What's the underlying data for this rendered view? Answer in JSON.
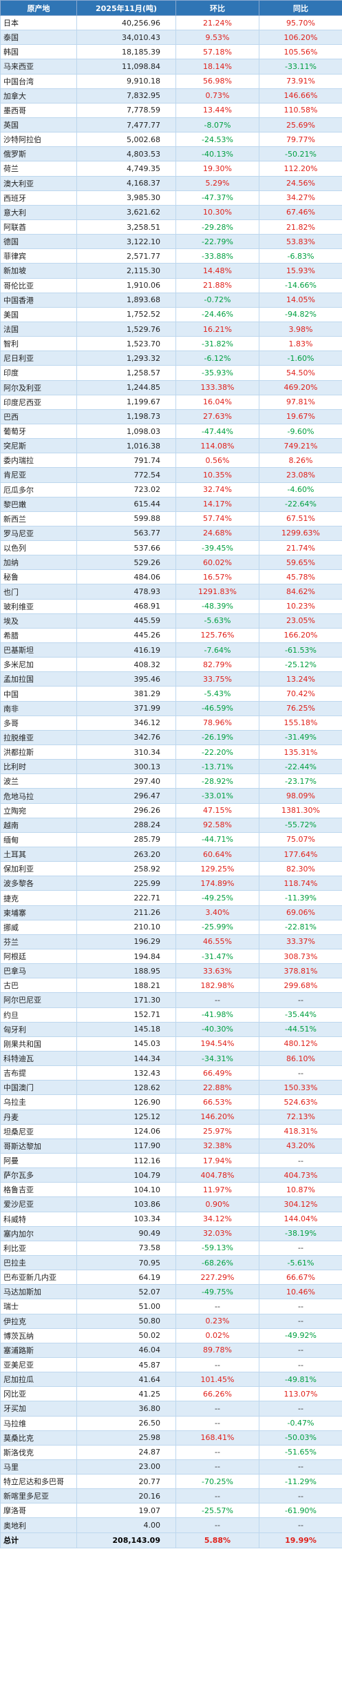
{
  "headers": {
    "origin": "原产地",
    "volume": "2025年11月(吨)",
    "mom": "环比",
    "yoy": "同比"
  },
  "colors": {
    "header_bg": "#2f75b5",
    "stripe": "#ddebf7",
    "increase": "#e0201a",
    "decrease": "#00a040"
  },
  "rows": [
    {
      "origin": "日本",
      "volume": "40,256.96",
      "mom": "21.24%",
      "yoy": "95.70%"
    },
    {
      "origin": "泰国",
      "volume": "34,010.43",
      "mom": "9.53%",
      "yoy": "106.20%"
    },
    {
      "origin": "韩国",
      "volume": "18,185.39",
      "mom": "57.18%",
      "yoy": "105.56%"
    },
    {
      "origin": "马来西亚",
      "volume": "11,098.84",
      "mom": "18.14%",
      "yoy": "-33.11%"
    },
    {
      "origin": "中国台湾",
      "volume": "9,910.18",
      "mom": "56.98%",
      "yoy": "73.91%"
    },
    {
      "origin": "加拿大",
      "volume": "7,832.95",
      "mom": "0.73%",
      "yoy": "146.66%"
    },
    {
      "origin": "墨西哥",
      "volume": "7,778.59",
      "mom": "13.44%",
      "yoy": "110.58%"
    },
    {
      "origin": "英国",
      "volume": "7,477.77",
      "mom": "-8.07%",
      "yoy": "25.69%"
    },
    {
      "origin": "沙特阿拉伯",
      "volume": "5,002.68",
      "mom": "-24.53%",
      "yoy": "79.77%"
    },
    {
      "origin": "俄罗斯",
      "volume": "4,803.53",
      "mom": "-40.13%",
      "yoy": "-50.21%"
    },
    {
      "origin": "荷兰",
      "volume": "4,749.35",
      "mom": "19.30%",
      "yoy": "112.20%"
    },
    {
      "origin": "澳大利亚",
      "volume": "4,168.37",
      "mom": "5.29%",
      "yoy": "24.56%"
    },
    {
      "origin": "西班牙",
      "volume": "3,985.30",
      "mom": "-47.37%",
      "yoy": "34.27%"
    },
    {
      "origin": "意大利",
      "volume": "3,621.62",
      "mom": "10.30%",
      "yoy": "67.46%"
    },
    {
      "origin": "阿联酋",
      "volume": "3,258.51",
      "mom": "-29.28%",
      "yoy": "21.82%"
    },
    {
      "origin": "德国",
      "volume": "3,122.10",
      "mom": "-22.79%",
      "yoy": "53.83%"
    },
    {
      "origin": "菲律宾",
      "volume": "2,571.77",
      "mom": "-33.88%",
      "yoy": "-6.83%"
    },
    {
      "origin": "新加坡",
      "volume": "2,115.30",
      "mom": "14.48%",
      "yoy": "15.93%"
    },
    {
      "origin": "哥伦比亚",
      "volume": "1,910.06",
      "mom": "21.88%",
      "yoy": "-14.66%"
    },
    {
      "origin": "中国香港",
      "volume": "1,893.68",
      "mom": "-0.72%",
      "yoy": "14.05%"
    },
    {
      "origin": "美国",
      "volume": "1,752.52",
      "mom": "-24.46%",
      "yoy": "-94.82%"
    },
    {
      "origin": "法国",
      "volume": "1,529.76",
      "mom": "16.21%",
      "yoy": "3.98%"
    },
    {
      "origin": "智利",
      "volume": "1,523.70",
      "mom": "-31.82%",
      "yoy": "1.83%"
    },
    {
      "origin": "尼日利亚",
      "volume": "1,293.32",
      "mom": "-6.12%",
      "yoy": "-1.60%"
    },
    {
      "origin": "印度",
      "volume": "1,258.57",
      "mom": "-35.93%",
      "yoy": "54.50%"
    },
    {
      "origin": "阿尔及利亚",
      "volume": "1,244.85",
      "mom": "133.38%",
      "yoy": "469.20%"
    },
    {
      "origin": "印度尼西亚",
      "volume": "1,199.67",
      "mom": "16.04%",
      "yoy": "97.81%"
    },
    {
      "origin": "巴西",
      "volume": "1,198.73",
      "mom": "27.63%",
      "yoy": "19.67%"
    },
    {
      "origin": "葡萄牙",
      "volume": "1,098.03",
      "mom": "-47.44%",
      "yoy": "-9.60%"
    },
    {
      "origin": "突尼斯",
      "volume": "1,016.38",
      "mom": "114.08%",
      "yoy": "749.21%"
    },
    {
      "origin": "委内瑞拉",
      "volume": "791.74",
      "mom": "0.56%",
      "yoy": "8.26%"
    },
    {
      "origin": "肯尼亚",
      "volume": "772.54",
      "mom": "10.35%",
      "yoy": "23.08%"
    },
    {
      "origin": "厄瓜多尔",
      "volume": "723.02",
      "mom": "32.74%",
      "yoy": "-4.60%"
    },
    {
      "origin": "黎巴嫩",
      "volume": "615.44",
      "mom": "14.17%",
      "yoy": "-22.64%"
    },
    {
      "origin": "新西兰",
      "volume": "599.88",
      "mom": "57.74%",
      "yoy": "67.51%"
    },
    {
      "origin": "罗马尼亚",
      "volume": "563.77",
      "mom": "24.68%",
      "yoy": "1299.63%"
    },
    {
      "origin": "以色列",
      "volume": "537.66",
      "mom": "-39.45%",
      "yoy": "21.74%"
    },
    {
      "origin": "加纳",
      "volume": "529.26",
      "mom": "60.02%",
      "yoy": "59.65%"
    },
    {
      "origin": "秘鲁",
      "volume": "484.06",
      "mom": "16.57%",
      "yoy": "45.78%"
    },
    {
      "origin": "也门",
      "volume": "478.93",
      "mom": "1291.83%",
      "yoy": "84.62%"
    },
    {
      "origin": "玻利维亚",
      "volume": "468.91",
      "mom": "-48.39%",
      "yoy": "10.23%"
    },
    {
      "origin": "埃及",
      "volume": "445.59",
      "mom": "-5.63%",
      "yoy": "23.05%"
    },
    {
      "origin": "希腊",
      "volume": "445.26",
      "mom": "125.76%",
      "yoy": "166.20%"
    },
    {
      "origin": "巴基斯坦",
      "volume": "416.19",
      "mom": "-7.64%",
      "yoy": "-61.53%"
    },
    {
      "origin": "多米尼加",
      "volume": "408.32",
      "mom": "82.79%",
      "yoy": "-25.12%"
    },
    {
      "origin": "孟加拉国",
      "volume": "395.46",
      "mom": "33.75%",
      "yoy": "13.24%"
    },
    {
      "origin": "中国",
      "volume": "381.29",
      "mom": "-5.43%",
      "yoy": "70.42%"
    },
    {
      "origin": "南非",
      "volume": "371.99",
      "mom": "-46.59%",
      "yoy": "76.25%"
    },
    {
      "origin": "多哥",
      "volume": "346.12",
      "mom": "78.96%",
      "yoy": "155.18%"
    },
    {
      "origin": "拉脱维亚",
      "volume": "342.76",
      "mom": "-26.19%",
      "yoy": "-31.49%"
    },
    {
      "origin": "洪都拉斯",
      "volume": "310.34",
      "mom": "-22.20%",
      "yoy": "135.31%"
    },
    {
      "origin": "比利时",
      "volume": "300.13",
      "mom": "-13.71%",
      "yoy": "-22.44%"
    },
    {
      "origin": "波兰",
      "volume": "297.40",
      "mom": "-28.92%",
      "yoy": "-23.17%"
    },
    {
      "origin": "危地马拉",
      "volume": "296.47",
      "mom": "-33.01%",
      "yoy": "98.09%"
    },
    {
      "origin": "立陶宛",
      "volume": "296.26",
      "mom": "47.15%",
      "yoy": "1381.30%"
    },
    {
      "origin": "越南",
      "volume": "288.24",
      "mom": "92.58%",
      "yoy": "-55.72%"
    },
    {
      "origin": "缅甸",
      "volume": "285.79",
      "mom": "-44.71%",
      "yoy": "75.07%"
    },
    {
      "origin": "土耳其",
      "volume": "263.20",
      "mom": "60.64%",
      "yoy": "177.64%"
    },
    {
      "origin": "保加利亚",
      "volume": "258.92",
      "mom": "129.25%",
      "yoy": "82.30%"
    },
    {
      "origin": "波多黎各",
      "volume": "225.99",
      "mom": "174.89%",
      "yoy": "118.74%"
    },
    {
      "origin": "捷克",
      "volume": "222.71",
      "mom": "-49.25%",
      "yoy": "-11.39%"
    },
    {
      "origin": "柬埔寨",
      "volume": "211.26",
      "mom": "3.40%",
      "yoy": "69.06%"
    },
    {
      "origin": "挪威",
      "volume": "210.10",
      "mom": "-25.99%",
      "yoy": "-22.81%"
    },
    {
      "origin": "芬兰",
      "volume": "196.29",
      "mom": "46.55%",
      "yoy": "33.37%"
    },
    {
      "origin": "阿根廷",
      "volume": "194.84",
      "mom": "-31.47%",
      "yoy": "308.73%"
    },
    {
      "origin": "巴拿马",
      "volume": "188.95",
      "mom": "33.63%",
      "yoy": "378.81%"
    },
    {
      "origin": "古巴",
      "volume": "188.21",
      "mom": "182.98%",
      "yoy": "299.68%"
    },
    {
      "origin": "阿尔巴尼亚",
      "volume": "171.30",
      "mom": "--",
      "yoy": "--"
    },
    {
      "origin": "约旦",
      "volume": "152.71",
      "mom": "-41.98%",
      "yoy": "-35.44%"
    },
    {
      "origin": "匈牙利",
      "volume": "145.18",
      "mom": "-40.30%",
      "yoy": "-44.51%"
    },
    {
      "origin": "刚果共和国",
      "volume": "145.03",
      "mom": "194.54%",
      "yoy": "480.12%"
    },
    {
      "origin": "科特迪瓦",
      "volume": "144.34",
      "mom": "-34.31%",
      "yoy": "86.10%"
    },
    {
      "origin": "吉布提",
      "volume": "132.43",
      "mom": "66.49%",
      "yoy": "--"
    },
    {
      "origin": "中国澳门",
      "volume": "128.62",
      "mom": "22.88%",
      "yoy": "150.33%"
    },
    {
      "origin": "乌拉圭",
      "volume": "126.90",
      "mom": "66.53%",
      "yoy": "524.63%"
    },
    {
      "origin": "丹麦",
      "volume": "125.12",
      "mom": "146.20%",
      "yoy": "72.13%"
    },
    {
      "origin": "坦桑尼亚",
      "volume": "124.06",
      "mom": "25.97%",
      "yoy": "418.31%"
    },
    {
      "origin": "哥斯达黎加",
      "volume": "117.90",
      "mom": "32.38%",
      "yoy": "43.20%"
    },
    {
      "origin": "阿曼",
      "volume": "112.16",
      "mom": "17.94%",
      "yoy": "--"
    },
    {
      "origin": "萨尔瓦多",
      "volume": "104.79",
      "mom": "404.78%",
      "yoy": "404.73%"
    },
    {
      "origin": "格鲁吉亚",
      "volume": "104.10",
      "mom": "11.97%",
      "yoy": "10.87%"
    },
    {
      "origin": "爱沙尼亚",
      "volume": "103.86",
      "mom": "0.90%",
      "yoy": "304.12%"
    },
    {
      "origin": "科威特",
      "volume": "103.34",
      "mom": "34.12%",
      "yoy": "144.04%"
    },
    {
      "origin": "塞内加尔",
      "volume": "90.49",
      "mom": "32.03%",
      "yoy": "-38.19%"
    },
    {
      "origin": "利比亚",
      "volume": "73.58",
      "mom": "-59.13%",
      "yoy": "--"
    },
    {
      "origin": "巴拉圭",
      "volume": "70.95",
      "mom": "-68.26%",
      "yoy": "-5.61%"
    },
    {
      "origin": "巴布亚新几内亚",
      "volume": "64.19",
      "mom": "227.29%",
      "yoy": "66.67%"
    },
    {
      "origin": "马达加斯加",
      "volume": "52.07",
      "mom": "-49.75%",
      "yoy": "10.46%"
    },
    {
      "origin": "瑞士",
      "volume": "51.00",
      "mom": "--",
      "yoy": "--"
    },
    {
      "origin": "伊拉克",
      "volume": "50.80",
      "mom": "0.23%",
      "yoy": "--"
    },
    {
      "origin": "博茨瓦纳",
      "volume": "50.02",
      "mom": "0.02%",
      "yoy": "-49.92%"
    },
    {
      "origin": "塞浦路斯",
      "volume": "46.04",
      "mom": "89.78%",
      "yoy": "--"
    },
    {
      "origin": "亚美尼亚",
      "volume": "45.87",
      "mom": "--",
      "yoy": "--"
    },
    {
      "origin": "尼加拉瓜",
      "volume": "41.64",
      "mom": "101.45%",
      "yoy": "-49.81%"
    },
    {
      "origin": "冈比亚",
      "volume": "41.25",
      "mom": "66.26%",
      "yoy": "113.07%"
    },
    {
      "origin": "牙买加",
      "volume": "36.80",
      "mom": "--",
      "yoy": "--"
    },
    {
      "origin": "马拉维",
      "volume": "26.50",
      "mom": "--",
      "yoy": "-0.47%"
    },
    {
      "origin": "莫桑比克",
      "volume": "25.98",
      "mom": "168.41%",
      "yoy": "-50.03%"
    },
    {
      "origin": "斯洛伐克",
      "volume": "24.87",
      "mom": "--",
      "yoy": "-51.65%"
    },
    {
      "origin": "马里",
      "volume": "23.00",
      "mom": "--",
      "yoy": "--"
    },
    {
      "origin": "特立尼达和多巴哥",
      "volume": "20.77",
      "mom": "-70.25%",
      "yoy": "-11.29%"
    },
    {
      "origin": "新喀里多尼亚",
      "volume": "20.16",
      "mom": "--",
      "yoy": "--"
    },
    {
      "origin": "摩洛哥",
      "volume": "19.07",
      "mom": "-25.57%",
      "yoy": "-61.90%"
    },
    {
      "origin": "奥地利",
      "volume": "4.00",
      "mom": "--",
      "yoy": "--"
    }
  ],
  "total": {
    "origin": "总计",
    "volume": "208,143.09",
    "mom": "5.88%",
    "yoy": "19.99%"
  }
}
